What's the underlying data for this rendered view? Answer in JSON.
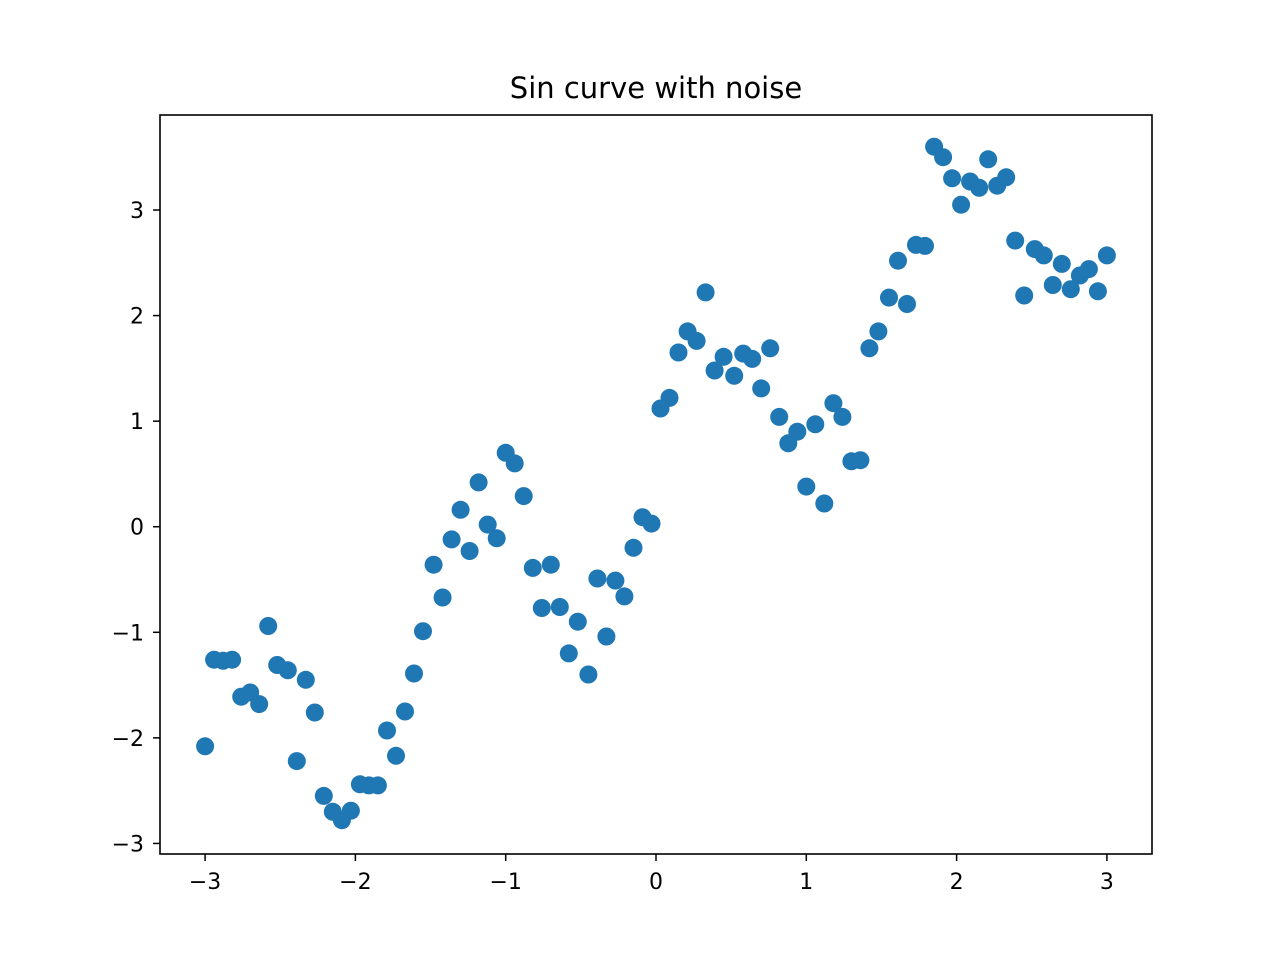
{
  "chart_data": {
    "type": "scatter",
    "title": "Sin curve with noise",
    "xlabel": "",
    "ylabel": "",
    "xlim": [
      -3.3,
      3.3
    ],
    "ylim": [
      -3.1,
      3.9
    ],
    "xticks": [
      -3,
      -2,
      -1,
      0,
      1,
      2,
      3
    ],
    "yticks": [
      -3,
      -2,
      -1,
      0,
      1,
      2,
      3
    ],
    "grid": false,
    "legend": "none",
    "marker_color": "#1f77b4",
    "series": [
      {
        "points": [
          [
            -3.0,
            -2.08
          ],
          [
            -2.94,
            -1.26
          ],
          [
            -2.88,
            -1.27
          ],
          [
            -2.82,
            -1.26
          ],
          [
            -2.76,
            -1.61
          ],
          [
            -2.7,
            -1.57
          ],
          [
            -2.64,
            -1.68
          ],
          [
            -2.58,
            -0.94
          ],
          [
            -2.52,
            -1.31
          ],
          [
            -2.45,
            -1.36
          ],
          [
            -2.39,
            -2.22
          ],
          [
            -2.33,
            -1.45
          ],
          [
            -2.27,
            -1.76
          ],
          [
            -2.21,
            -2.55
          ],
          [
            -2.15,
            -2.7
          ],
          [
            -2.09,
            -2.78
          ],
          [
            -2.03,
            -2.69
          ],
          [
            -1.97,
            -2.44
          ],
          [
            -1.91,
            -2.45
          ],
          [
            -1.85,
            -2.45
          ],
          [
            -1.79,
            -1.93
          ],
          [
            -1.73,
            -2.17
          ],
          [
            -1.67,
            -1.75
          ],
          [
            -1.61,
            -1.39
          ],
          [
            -1.55,
            -0.99
          ],
          [
            -1.48,
            -0.36
          ],
          [
            -1.42,
            -0.67
          ],
          [
            -1.36,
            -0.12
          ],
          [
            -1.3,
            0.16
          ],
          [
            -1.24,
            -0.23
          ],
          [
            -1.18,
            0.42
          ],
          [
            -1.12,
            0.02
          ],
          [
            -1.06,
            -0.11
          ],
          [
            -1.0,
            0.7
          ],
          [
            -0.94,
            0.6
          ],
          [
            -0.88,
            0.29
          ],
          [
            -0.82,
            -0.39
          ],
          [
            -0.76,
            -0.77
          ],
          [
            -0.7,
            -0.36
          ],
          [
            -0.64,
            -0.76
          ],
          [
            -0.58,
            -1.2
          ],
          [
            -0.52,
            -0.9
          ],
          [
            -0.45,
            -1.4
          ],
          [
            -0.39,
            -0.49
          ],
          [
            -0.33,
            -1.04
          ],
          [
            -0.27,
            -0.51
          ],
          [
            -0.21,
            -0.66
          ],
          [
            -0.15,
            -0.2
          ],
          [
            -0.09,
            0.09
          ],
          [
            -0.03,
            0.03
          ],
          [
            0.03,
            1.12
          ],
          [
            0.09,
            1.22
          ],
          [
            0.15,
            1.65
          ],
          [
            0.21,
            1.85
          ],
          [
            0.27,
            1.76
          ],
          [
            0.33,
            2.22
          ],
          [
            0.39,
            1.48
          ],
          [
            0.45,
            1.61
          ],
          [
            0.52,
            1.43
          ],
          [
            0.58,
            1.64
          ],
          [
            0.64,
            1.59
          ],
          [
            0.7,
            1.31
          ],
          [
            0.76,
            1.69
          ],
          [
            0.82,
            1.04
          ],
          [
            0.88,
            0.79
          ],
          [
            0.94,
            0.9
          ],
          [
            1.0,
            0.38
          ],
          [
            1.06,
            0.97
          ],
          [
            1.12,
            0.22
          ],
          [
            1.18,
            1.17
          ],
          [
            1.24,
            1.04
          ],
          [
            1.3,
            0.62
          ],
          [
            1.36,
            0.63
          ],
          [
            1.42,
            1.69
          ],
          [
            1.48,
            1.85
          ],
          [
            1.55,
            2.17
          ],
          [
            1.61,
            2.52
          ],
          [
            1.67,
            2.11
          ],
          [
            1.73,
            2.67
          ],
          [
            1.79,
            2.66
          ],
          [
            1.85,
            3.6
          ],
          [
            1.91,
            3.5
          ],
          [
            1.97,
            3.3
          ],
          [
            2.03,
            3.05
          ],
          [
            2.09,
            3.27
          ],
          [
            2.15,
            3.21
          ],
          [
            2.21,
            3.48
          ],
          [
            2.27,
            3.23
          ],
          [
            2.33,
            3.31
          ],
          [
            2.39,
            2.71
          ],
          [
            2.45,
            2.19
          ],
          [
            2.52,
            2.63
          ],
          [
            2.58,
            2.57
          ],
          [
            2.64,
            2.29
          ],
          [
            2.7,
            2.49
          ],
          [
            2.76,
            2.25
          ],
          [
            2.82,
            2.38
          ],
          [
            2.88,
            2.44
          ],
          [
            2.94,
            2.23
          ],
          [
            3.0,
            2.57
          ]
        ]
      }
    ]
  }
}
